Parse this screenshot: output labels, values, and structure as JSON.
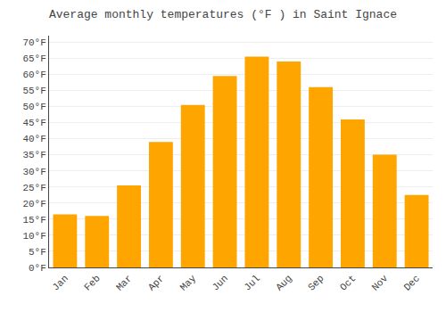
{
  "chart_data": {
    "type": "bar",
    "title": "Average monthly temperatures (°F ) in Saint Ignace",
    "categories": [
      "Jan",
      "Feb",
      "Mar",
      "Apr",
      "May",
      "Jun",
      "Jul",
      "Aug",
      "Sep",
      "Oct",
      "Nov",
      "Dec"
    ],
    "values": [
      16.5,
      16.0,
      25.5,
      39.0,
      50.5,
      59.5,
      65.5,
      64.0,
      56.0,
      46.0,
      35.0,
      22.5
    ],
    "color": "#FFA500",
    "ylim": [
      0,
      72
    ],
    "yticks": [
      {
        "value": 0,
        "label": "0°F"
      },
      {
        "value": 5,
        "label": "5°F"
      },
      {
        "value": 10,
        "label": "10°F"
      },
      {
        "value": 15,
        "label": "15°F"
      },
      {
        "value": 20,
        "label": "20°F"
      },
      {
        "value": 25,
        "label": "25°F"
      },
      {
        "value": 30,
        "label": "30°F"
      },
      {
        "value": 35,
        "label": "35°F"
      },
      {
        "value": 40,
        "label": "40°F"
      },
      {
        "value": 45,
        "label": "45°F"
      },
      {
        "value": 50,
        "label": "50°F"
      },
      {
        "value": 55,
        "label": "55°F"
      },
      {
        "value": 60,
        "label": "60°F"
      },
      {
        "value": 65,
        "label": "65°F"
      },
      {
        "value": 70,
        "label": "70°F"
      }
    ],
    "grid": true
  }
}
